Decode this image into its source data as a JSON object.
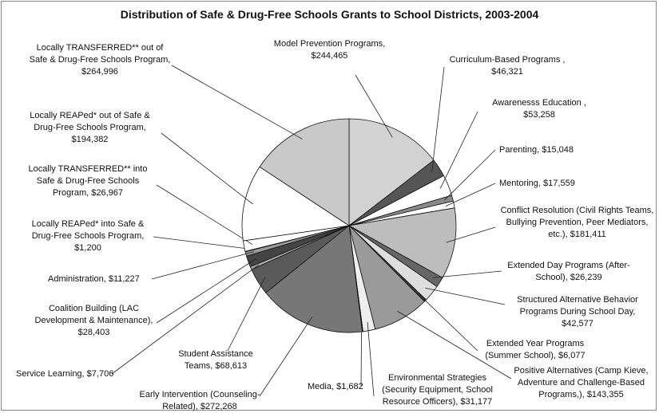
{
  "chart_data": {
    "type": "pie",
    "title": "Distribution of Safe & Drug-Free Schools Grants to School Districts, 2003-2004",
    "categories": [
      "Model Prevention Programs,",
      "Curriculum-Based Programs ,",
      "Awarenesss Education ,",
      "Parenting,",
      "Mentoring,",
      "Conflict Resolution (Civil Rights Teams, Bullying Prevention, Peer Mediators, etc.),",
      "Extended Day Programs (After-School),",
      "Structured Alternative Behavior Programs During School Day,",
      "Extended Year Programs (Summer School),",
      "Positive Alternatives (Camp Kieve, Adventure and Challenge-Based Programs,),",
      "Environmental Strategies (Security Equipment, School Resource Officers),",
      "Media,",
      "Early Intervention (Counseling-Related),",
      "Student Assistance Teams,",
      "Service Learning,",
      "Coalition Building (LAC Development & Maintenance),",
      "Administration,",
      "Locally REAPed* into Safe & Drug-Free Schools Program,",
      "Locally TRANSFERRED** into Safe & Drug-Free Schools Program,",
      "Locally REAPed* out of Safe & Drug-Free Schools Program,",
      "Locally TRANSFERRED** out of Safe & Drug-Free Schools Program,"
    ],
    "values": [
      244465,
      46321,
      53258,
      15048,
      17559,
      181411,
      26239,
      42577,
      6077,
      143355,
      31177,
      1682,
      272268,
      68613,
      7706,
      28403,
      11227,
      1200,
      26967,
      194382,
      264996
    ],
    "value_labels": [
      "$244,465",
      "$46,321",
      "$53,258",
      "$15,048",
      "$17,559",
      "$181,411",
      "$26,239",
      "$42,577",
      "$6,077",
      "$143,355",
      "$31,177",
      "$1,682",
      "$272,268",
      "$68,613",
      "$7,706",
      "$28,403",
      "$11,227",
      "$1,200",
      "$26,967",
      "$194,382",
      "$264,996"
    ],
    "colors": [
      "#d2d2d2",
      "#555555",
      "#ffffff",
      "#8a8a8a",
      "#ffffff",
      "#bdbdbd",
      "#666666",
      "#dedede",
      "#3a3a3a",
      "#9a9a9a",
      "#eeeeee",
      "#222222",
      "#777777",
      "#5a5a5a",
      "#aaaaaa",
      "#444444",
      "#999999",
      "#666666",
      "#ffffff",
      "#ffffff",
      "#c9c9c9"
    ]
  }
}
